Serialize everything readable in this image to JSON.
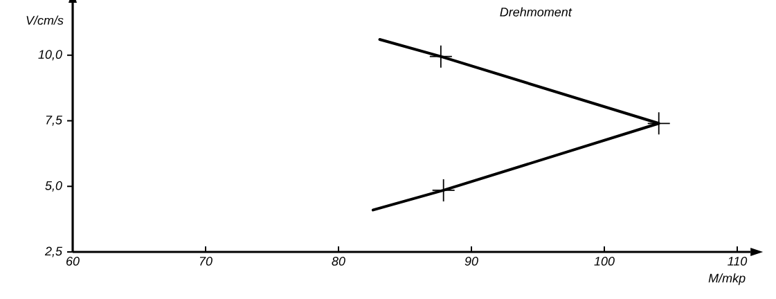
{
  "chart_data": {
    "type": "line",
    "title": "Drehmoment",
    "xlabel": "M/mkp",
    "ylabel": "V/cm/s",
    "xlim": [
      60,
      111
    ],
    "ylim": [
      2.5,
      12
    ],
    "xticks": [
      60,
      70,
      80,
      90,
      100,
      110
    ],
    "yticks": [
      {
        "value": 2.5,
        "label": "2,5"
      },
      {
        "value": 5,
        "label": "5,0"
      },
      {
        "value": 7.5,
        "label": "7,5"
      },
      {
        "value": 10,
        "label": "10,0"
      }
    ],
    "series": [
      {
        "color": "#000000",
        "marker": "none",
        "line_style": "solid",
        "x": [
          82.6,
          87.9,
          104.1,
          87.7,
          83.1
        ],
        "values": [
          4.1,
          4.85,
          7.4,
          9.95,
          10.6
        ]
      },
      {
        "type": "scatter",
        "color": "#000000",
        "marker": "cross",
        "x": [
          87.9,
          104.1,
          87.7
        ],
        "values": [
          4.85,
          7.4,
          9.95
        ]
      }
    ]
  }
}
